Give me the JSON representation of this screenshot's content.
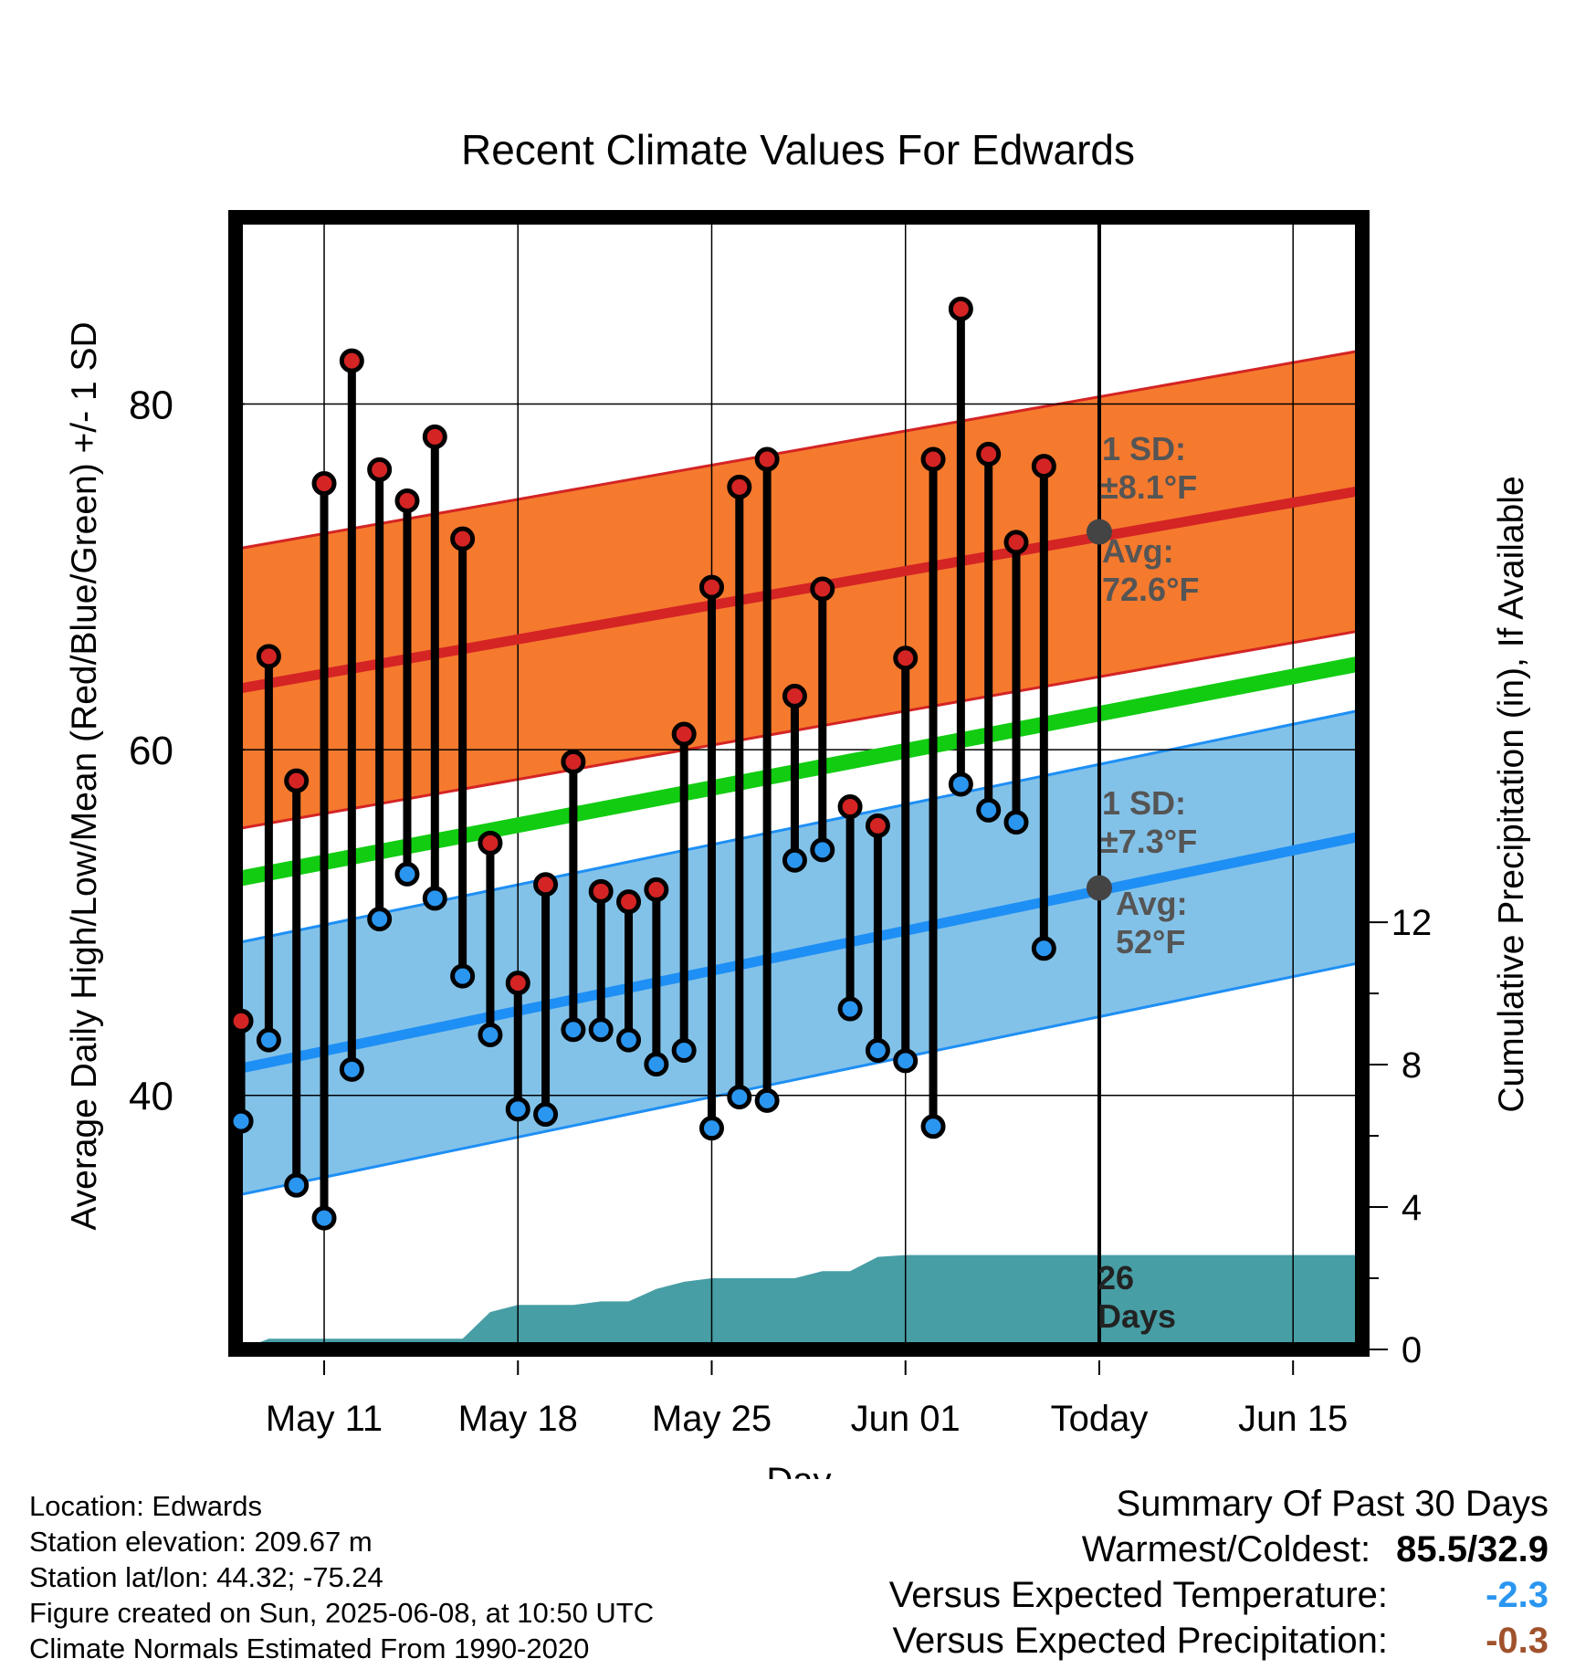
{
  "chart_data": {
    "type": "line",
    "title": "Recent Climate Values For Edwards",
    "xlabel": "Day",
    "ylabel": "Average Daily High/Low/Mean (Red/Blue/Green) +/- 1 SD",
    "y2label": "Cumulative Precipitation (in), If Available",
    "x_ticks": [
      {
        "day": 11,
        "label": "May 11"
      },
      {
        "day": 18,
        "label": "May 18"
      },
      {
        "day": 25,
        "label": "May 25"
      },
      {
        "day": 32,
        "label": "Jun 01"
      },
      {
        "day": 39,
        "label": "Today"
      },
      {
        "day": 46,
        "label": "Jun 15"
      }
    ],
    "xlim": [
      7.8,
      48.5
    ],
    "ylim": [
      25.3,
      90.8
    ],
    "y_ticks": [
      40,
      60,
      80
    ],
    "y2lim": [
      0,
      31.8
    ],
    "y2_ticks": [
      0,
      4,
      8,
      12
    ],
    "days": [
      8,
      9,
      10,
      11,
      12,
      13,
      14,
      15,
      16,
      17,
      18,
      19,
      20,
      21,
      22,
      23,
      24,
      25,
      26,
      27,
      28,
      29,
      30,
      31,
      32,
      33,
      34,
      35,
      36,
      37,
      38
    ],
    "highs": [
      44.3,
      65.4,
      58.2,
      75.4,
      82.5,
      76.2,
      74.4,
      78.1,
      72.2,
      54.6,
      46.5,
      52.2,
      59.3,
      51.8,
      51.2,
      51.9,
      60.9,
      69.4,
      75.2,
      76.8,
      63.1,
      69.3,
      56.7,
      55.6,
      65.3,
      76.8,
      85.5,
      77.1,
      72.0,
      76.4,
      null
    ],
    "lows": [
      38.5,
      43.2,
      34.8,
      32.9,
      41.5,
      50.2,
      52.8,
      51.4,
      46.9,
      43.5,
      39.2,
      38.9,
      43.8,
      43.8,
      43.2,
      41.8,
      42.6,
      38.1,
      39.9,
      39.7,
      53.6,
      54.2,
      45.0,
      42.6,
      42.0,
      38.2,
      58.0,
      56.5,
      55.8,
      48.5,
      null
    ],
    "normal_high": {
      "start": 63.5,
      "end": 75.0
    },
    "normal_low": {
      "start": 41.5,
      "end": 55.0
    },
    "normal_mean": {
      "start": 52.5,
      "end": 65.0
    },
    "high_sd": 8.1,
    "low_sd": 7.3,
    "today_day": 39,
    "cumulative_precip": [
      [
        8,
        0.0
      ],
      [
        9,
        0.3
      ],
      [
        10,
        0.3
      ],
      [
        11,
        0.3
      ],
      [
        12,
        0.3
      ],
      [
        13,
        0.3
      ],
      [
        14,
        0.3
      ],
      [
        15,
        0.3
      ],
      [
        16,
        0.3
      ],
      [
        17,
        1.05
      ],
      [
        18,
        1.25
      ],
      [
        19,
        1.25
      ],
      [
        20,
        1.25
      ],
      [
        21,
        1.35
      ],
      [
        22,
        1.35
      ],
      [
        23,
        1.7
      ],
      [
        24,
        1.9
      ],
      [
        25,
        2.0
      ],
      [
        26,
        2.0
      ],
      [
        27,
        2.0
      ],
      [
        28,
        2.0
      ],
      [
        29,
        2.2
      ],
      [
        30,
        2.2
      ],
      [
        31,
        2.6
      ],
      [
        32,
        2.65
      ],
      [
        33,
        2.65
      ],
      [
        34,
        2.65
      ],
      [
        35,
        2.65
      ],
      [
        36,
        2.65
      ],
      [
        37,
        2.65
      ],
      [
        38,
        2.65
      ],
      [
        39,
        2.65
      ],
      [
        48.5,
        2.65
      ]
    ],
    "annotations": {
      "high_sd_line1": "1 SD:",
      "high_sd_line2": "±8.1°F",
      "high_avg_line1": "Avg:",
      "high_avg_line2": "72.6°F",
      "high_avg_value": 72.6,
      "low_sd_line1": "1 SD:",
      "low_sd_line2": "±7.3°F",
      "low_avg_line1": "Avg:",
      "low_avg_line2": "52°F",
      "low_avg_value": 52.0,
      "days_line1": "26",
      "days_line2": "Days"
    },
    "colors": {
      "high_point": "#d42424",
      "low_point": "#2a96f0",
      "high_line": "#d42424",
      "low_line": "#1e8ff5",
      "mean_line": "#12cc12",
      "high_band": "#f57a2e",
      "low_band": "#83c2e8",
      "precip": "#479ea5",
      "avg_marker": "#444444",
      "annot_text": "#555555"
    }
  },
  "footer": {
    "location": "Location: Edwards",
    "elevation": "Station elevation: 209.67 m",
    "latlon": "Station lat/lon: 44.32; -75.24",
    "created": "Figure created on Sun, 2025-06-08, at 10:50 UTC",
    "normals": "Climate Normals Estimated From 1990-2020"
  },
  "summary": {
    "title": "Summary Of Past 30 Days",
    "warm_label": "Warmest/Coldest:",
    "warm_value": "85.5/32.9",
    "temp_label": "Versus Expected Temperature:",
    "temp_value": "-2.3",
    "temp_color": "#2a96f0",
    "precip_label": "Versus Expected Precipitation:",
    "precip_value": "-0.3",
    "precip_color": "#a0522d"
  }
}
